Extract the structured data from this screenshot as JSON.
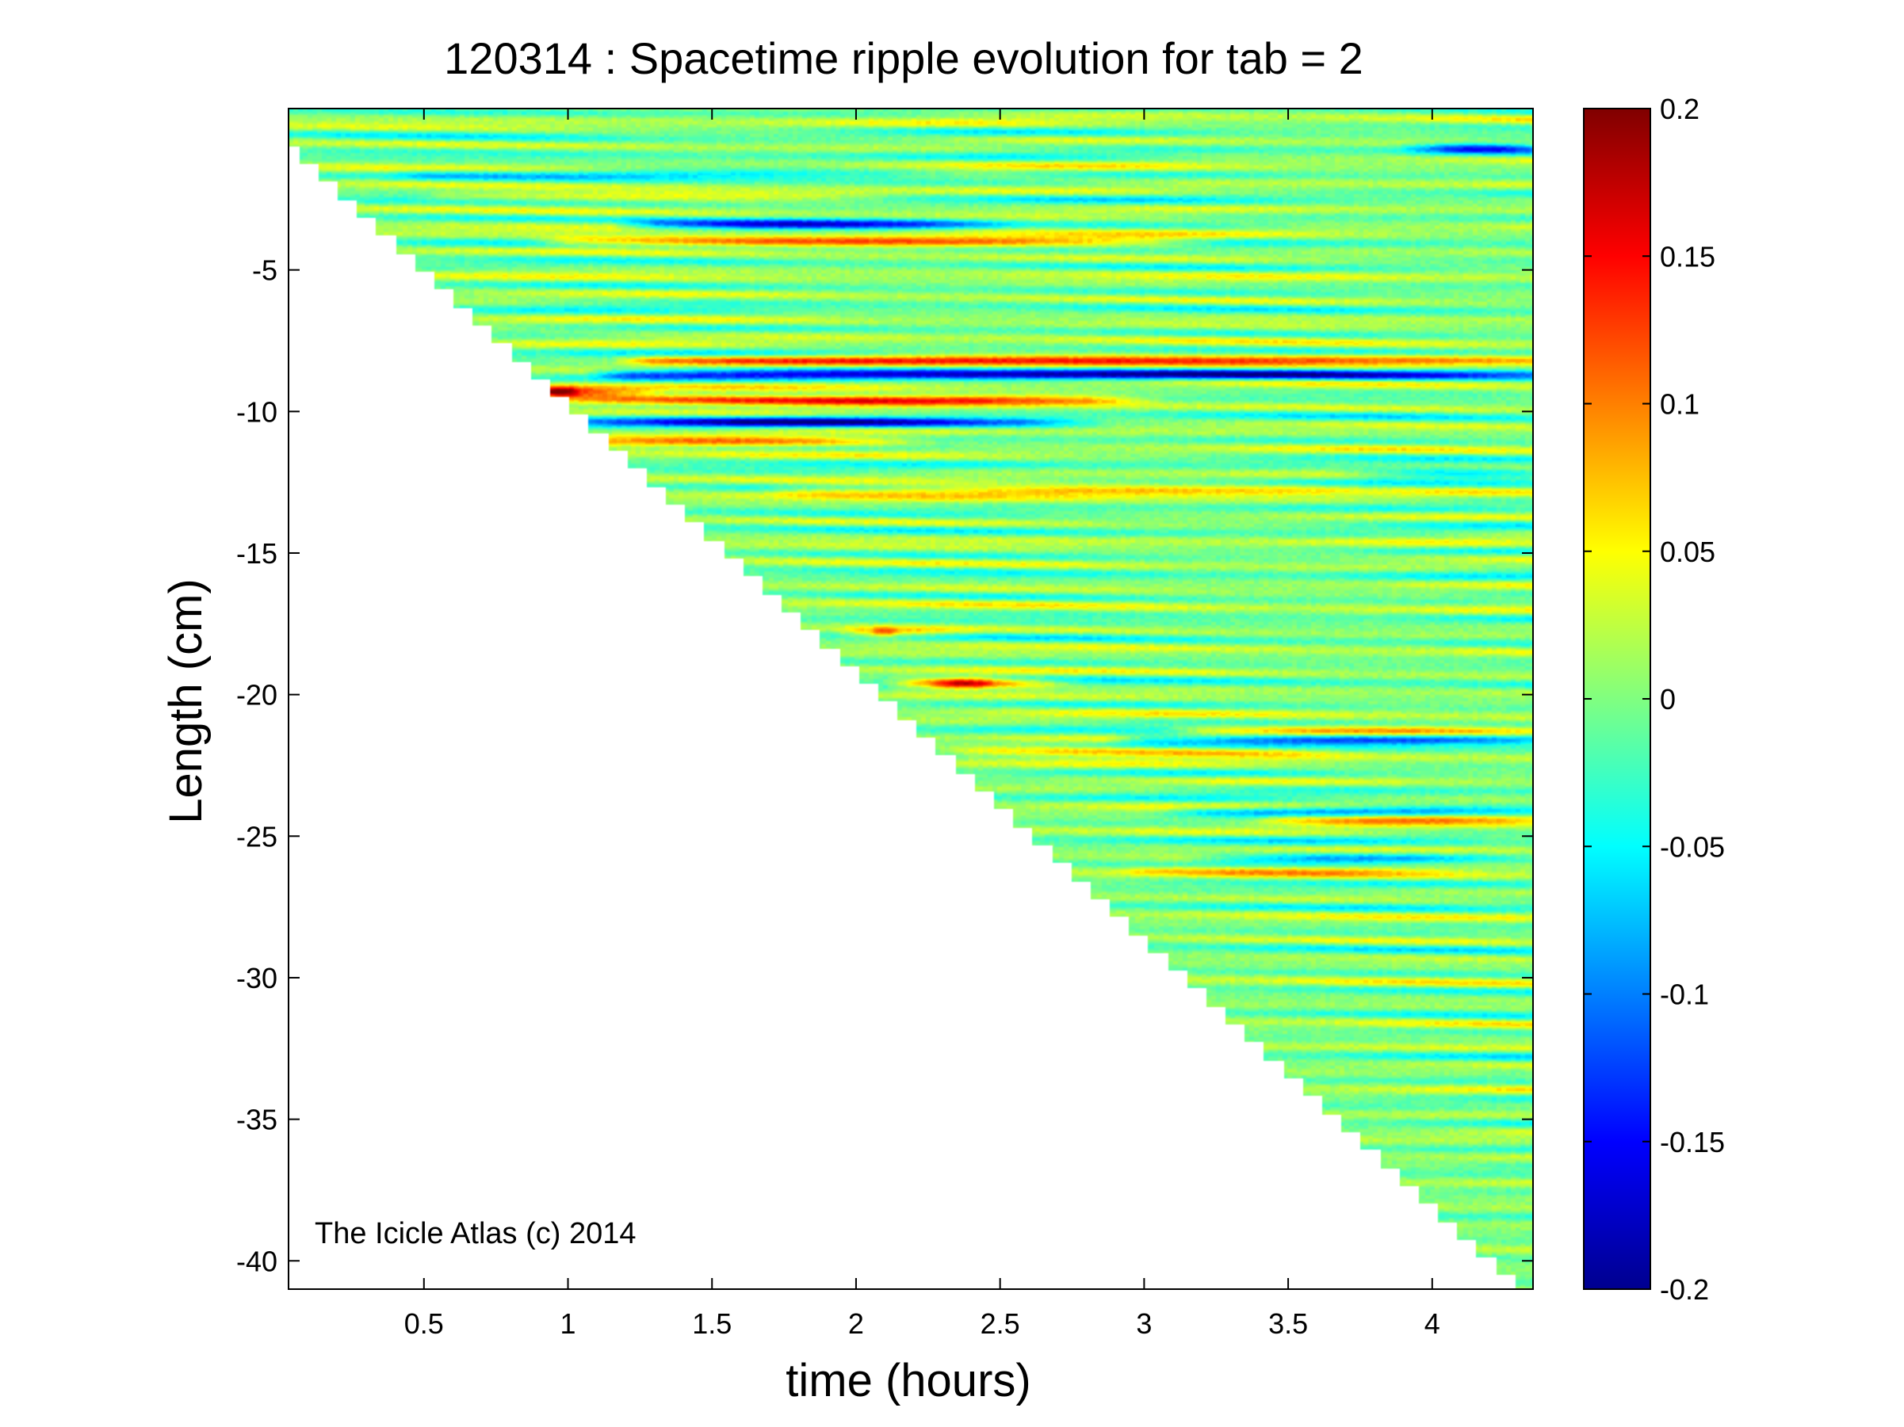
{
  "chart_data": {
    "type": "heatmap",
    "title": "120314 : Spacetime ripple evolution for tab = 2",
    "xlabel": "time (hours)",
    "ylabel": "Length (cm)",
    "xlim": [
      0.03,
      4.35
    ],
    "ylim": [
      -41,
      0.7
    ],
    "x_ticks": [
      0.5,
      1,
      1.5,
      2,
      2.5,
      3,
      3.5,
      4
    ],
    "x_tick_labels": [
      "0.5",
      "1",
      "1.5",
      "2",
      "2.5",
      "3",
      "3.5",
      "4"
    ],
    "y_ticks": [
      -5,
      -10,
      -15,
      -20,
      -25,
      -30,
      -35,
      -40
    ],
    "y_tick_labels": [
      "-5",
      "-10",
      "-15",
      "-20",
      "-25",
      "-30",
      "-35",
      "-40"
    ],
    "colorbar": {
      "colormap": "jet",
      "clim": [
        -0.2,
        0.2
      ],
      "ticks": [
        0.2,
        0.15,
        0.1,
        0.05,
        0,
        -0.05,
        -0.1,
        -0.15,
        -0.2
      ],
      "tick_labels": [
        "0.2",
        "0.15",
        "0.1",
        "0.05",
        "0",
        "-0.05",
        "-0.1",
        "-0.15",
        "-0.2"
      ]
    },
    "data_region": {
      "description_type": "lower-triangular; data exists only where length >= -9.45 * time (icicle grows over time)",
      "growth_rate_cm_per_hour": -9.45
    },
    "ripple_bands": [
      {
        "y": -0.7,
        "t0": 4.0,
        "t1": 4.35,
        "amplitude": -0.13
      },
      {
        "y": -1.6,
        "t0": 0.5,
        "t1": 2.1,
        "amplitude": -0.07
      },
      {
        "y": -2.4,
        "t0": 0.6,
        "t1": 1.9,
        "amplitude": 0.06
      },
      {
        "y": -3.4,
        "t0": 1.3,
        "t1": 2.3,
        "amplitude": -0.16
      },
      {
        "y": -4.0,
        "t0": 1.0,
        "t1": 3.0,
        "amplitude": 0.13
      },
      {
        "y": -8.2,
        "t0": 1.3,
        "t1": 4.35,
        "amplitude": 0.14
      },
      {
        "y": -8.7,
        "t0": 1.2,
        "t1": 4.35,
        "amplitude": -0.17
      },
      {
        "y": -9.3,
        "t0": 0.9,
        "t1": 1.05,
        "amplitude": 0.2
      },
      {
        "y": -9.6,
        "t0": 1.05,
        "t1": 2.8,
        "amplitude": 0.17
      },
      {
        "y": -10.4,
        "t0": 1.1,
        "t1": 2.6,
        "amplitude": -0.15
      },
      {
        "y": -11.1,
        "t0": 1.0,
        "t1": 2.0,
        "amplitude": 0.11
      },
      {
        "y": -12.2,
        "t0": 3.8,
        "t1": 4.35,
        "amplitude": -0.07
      },
      {
        "y": -12.8,
        "t0": 1.8,
        "t1": 3.5,
        "amplitude": 0.09
      },
      {
        "y": -17.8,
        "t0": 2.05,
        "t1": 2.15,
        "amplitude": 0.12
      },
      {
        "y": -19.6,
        "t0": 2.25,
        "t1": 2.5,
        "amplitude": 0.2
      },
      {
        "y": -21.3,
        "t0": 3.2,
        "t1": 4.35,
        "amplitude": 0.1
      },
      {
        "y": -21.6,
        "t0": 3.0,
        "t1": 4.35,
        "amplitude": -0.14
      },
      {
        "y": -22.0,
        "t0": 2.4,
        "t1": 3.5,
        "amplitude": 0.09
      },
      {
        "y": -24.1,
        "t0": 3.2,
        "t1": 4.35,
        "amplitude": -0.1
      },
      {
        "y": -24.4,
        "t0": 3.5,
        "t1": 4.35,
        "amplitude": 0.11
      },
      {
        "y": -25.8,
        "t0": 3.3,
        "t1": 4.0,
        "amplitude": -0.08
      },
      {
        "y": -26.2,
        "t0": 3.0,
        "t1": 3.9,
        "amplitude": 0.06
      }
    ],
    "annotation": "The Icicle Atlas (c) 2014"
  }
}
